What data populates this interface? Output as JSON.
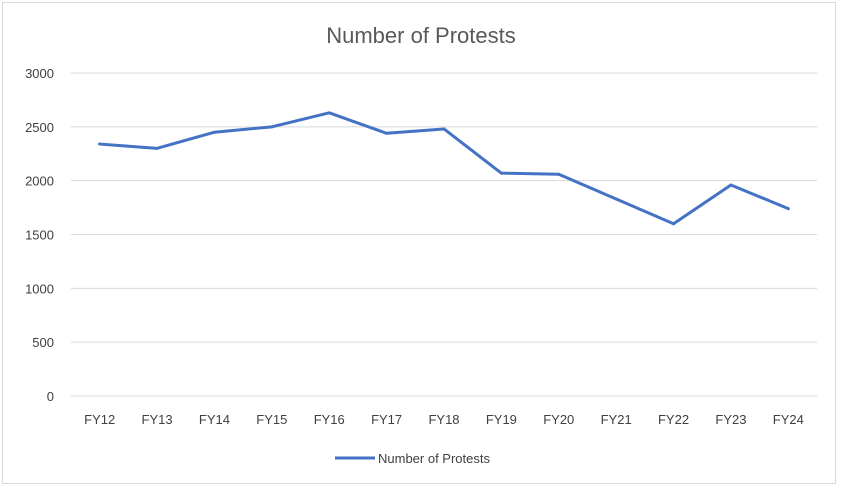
{
  "chart_data": {
    "type": "line",
    "title": "Number of Protests",
    "xlabel": "",
    "ylabel": "",
    "categories": [
      "FY12",
      "FY13",
      "FY14",
      "FY15",
      "FY16",
      "FY17",
      "FY18",
      "FY19",
      "FY20",
      "FY21",
      "FY22",
      "FY23",
      "FY24"
    ],
    "series": [
      {
        "name": "Number of Protests",
        "color": "#4472c4",
        "values": [
          2340,
          2300,
          2450,
          2500,
          2630,
          2440,
          2480,
          2070,
          2060,
          1830,
          1600,
          1960,
          1740
        ]
      }
    ],
    "ylim": [
      0,
      3000
    ],
    "yticks": [
      0,
      500,
      1000,
      1500,
      2000,
      2500,
      3000
    ],
    "grid": true,
    "legend": "bottom"
  }
}
